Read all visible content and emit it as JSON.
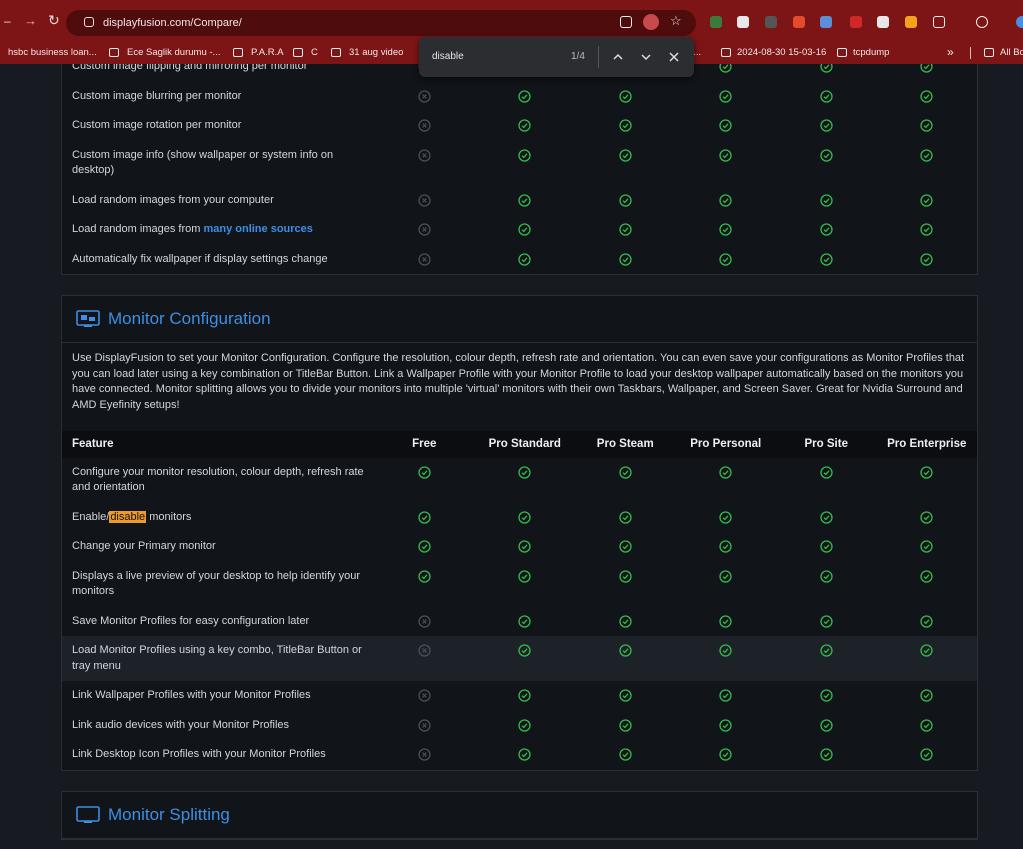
{
  "browser": {
    "url": "displayfusion.com/Compare/",
    "bookmarks": [
      "hsbc business loan...",
      "Ece Saglik durumu -...",
      "P.A.R.A",
      "C",
      "31 aug video",
      "e...",
      "2024-08-30 15-03-16",
      "tcpdump"
    ],
    "more": "»",
    "all_bookmarks": "All Bo"
  },
  "find_bar": {
    "query": "disable",
    "count": "1/4"
  },
  "sections": [
    {
      "rows": [
        {
          "feature": "Custom image flipping and mirroring per monitor",
          "support": [
            false,
            true,
            true,
            true,
            true,
            true
          ]
        },
        {
          "feature": "Custom image blurring per monitor",
          "support": [
            false,
            true,
            true,
            true,
            true,
            true
          ]
        },
        {
          "feature": "Custom image rotation per monitor",
          "support": [
            false,
            true,
            true,
            true,
            true,
            true
          ]
        },
        {
          "feature": "Custom image info (show wallpaper or system info on desktop)",
          "support": [
            false,
            true,
            true,
            true,
            true,
            true
          ]
        },
        {
          "feature": "Load random images from your computer",
          "support": [
            false,
            true,
            true,
            true,
            true,
            true
          ]
        },
        {
          "feature": "Load random images from",
          "link": "many online sources",
          "support": [
            false,
            true,
            true,
            true,
            true,
            true
          ]
        },
        {
          "feature": "Automatically fix wallpaper if display settings change",
          "support": [
            false,
            true,
            true,
            true,
            true,
            true
          ]
        }
      ]
    },
    {
      "title": "Monitor Configuration",
      "description": "Use DisplayFusion to set your Monitor Configuration. Configure the resolution, colour depth, refresh rate and orientation. You can even save your configurations as Monitor Profiles that you can load later using a key combination or TitleBar Button. Link a Wallpaper Profile with your Monitor Profile to load your desktop wallpaper automatically based on the monitors you have connected. Monitor splitting allows you to divide your monitors into multiple 'virtual' monitors with their own Taskbars, Wallpaper, and Screen Saver. Great for Nvidia Surround and AMD Eyefinity setups!",
      "columns": [
        "Feature",
        "Free",
        "Pro Standard",
        "Pro Steam",
        "Pro Personal",
        "Pro Site",
        "Pro Enterprise"
      ],
      "rows": [
        {
          "feature": "Configure your monitor resolution, colour depth, refresh rate and orientation",
          "support": [
            true,
            true,
            true,
            true,
            true,
            true
          ]
        },
        {
          "feature": "Enable/disable monitors",
          "support": [
            true,
            true,
            true,
            true,
            true,
            true
          ]
        },
        {
          "feature": "Change your Primary monitor",
          "support": [
            true,
            true,
            true,
            true,
            true,
            true
          ]
        },
        {
          "feature": "Displays a live preview of your desktop to help identify your monitors",
          "support": [
            true,
            true,
            true,
            true,
            true,
            true
          ]
        },
        {
          "feature": "Save Monitor Profiles for easy configuration later",
          "support": [
            false,
            true,
            true,
            true,
            true,
            true
          ]
        },
        {
          "feature": "Load Monitor Profiles using a key combo, TitleBar Button or tray menu",
          "support": [
            false,
            true,
            true,
            true,
            true,
            true
          ]
        },
        {
          "feature": "Link Wallpaper Profiles with your Monitor Profiles",
          "support": [
            false,
            true,
            true,
            true,
            true,
            true
          ]
        },
        {
          "feature": "Link audio devices with your Monitor Profiles",
          "support": [
            false,
            true,
            true,
            true,
            true,
            true
          ]
        },
        {
          "feature": "Link Desktop Icon Profiles with your Monitor Profiles",
          "support": [
            false,
            true,
            true,
            true,
            true,
            true
          ]
        }
      ]
    },
    {
      "title": "Monitor Splitting"
    }
  ]
}
